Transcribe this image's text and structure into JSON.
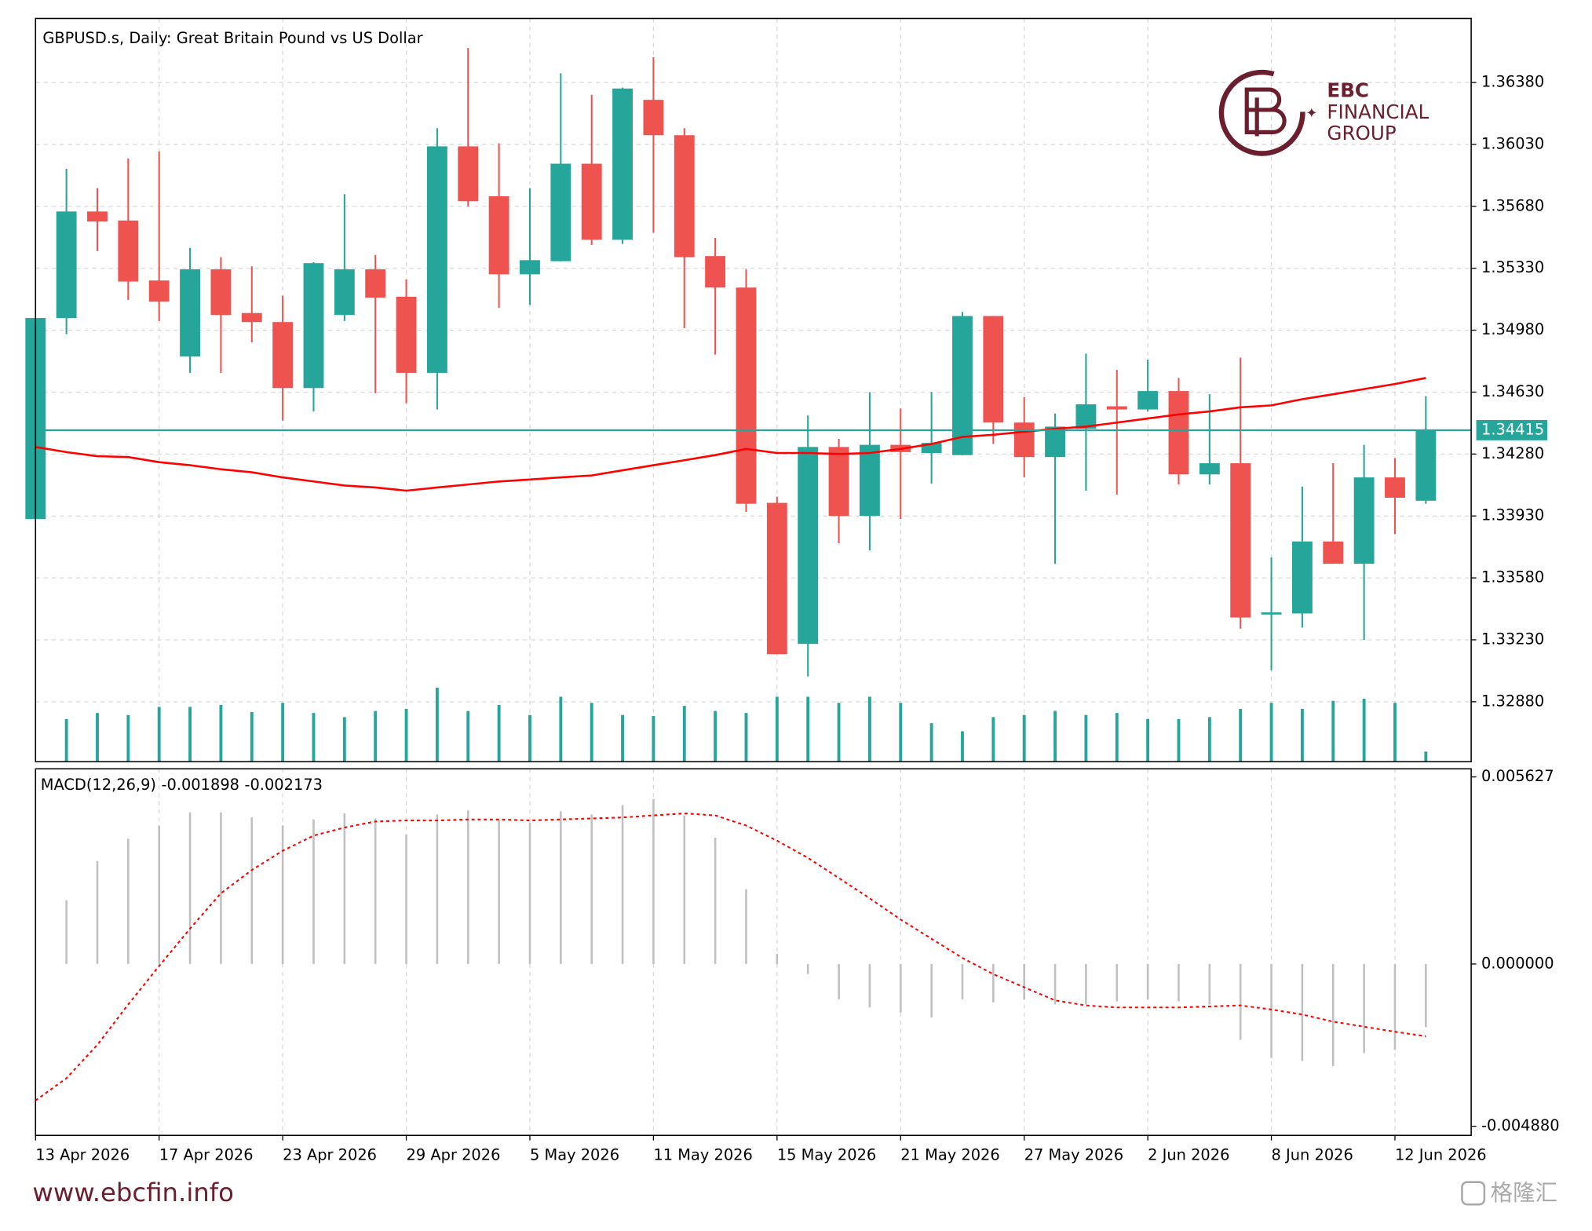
{
  "chart_data": {
    "type": "candlestick",
    "title": "GBPUSD.s, Daily:  Great Britain Pound vs US Dollar",
    "categories": [
      "13 Apr 2026",
      null,
      null,
      null,
      "17 Apr 2026",
      null,
      null,
      null,
      "23 Apr 2026",
      null,
      null,
      null,
      "29 Apr 2026",
      null,
      null,
      null,
      "5 May 2026",
      null,
      null,
      null,
      "11 May 2026",
      null,
      null,
      null,
      "15 May 2026",
      null,
      null,
      null,
      "21 May 2026",
      null,
      null,
      null,
      "27 May 2026",
      null,
      null,
      null,
      "2 Jun 2026",
      null,
      null,
      null,
      "8 Jun 2026",
      null,
      null,
      null,
      "12 Jun 2026",
      null
    ],
    "open": [
      1.33913,
      1.35049,
      1.35651,
      1.356,
      1.35261,
      1.34831,
      1.35324,
      1.35077,
      1.35026,
      1.34653,
      1.35066,
      1.35324,
      1.35169,
      1.34739,
      1.36019,
      1.35737,
      1.35296,
      1.3537,
      1.35921,
      1.35491,
      1.36282,
      1.36082,
      1.35399,
      1.35221,
      1.34004,
      1.33207,
      1.3432,
      1.3393,
      1.34332,
      1.34286,
      1.34274,
      1.3506,
      1.34458,
      1.34263,
      1.34423,
      1.3455,
      1.34532,
      1.34636,
      1.34165,
      1.34228,
      1.33373,
      1.33379,
      1.33786,
      1.3366,
      1.34148,
      1.34016
    ],
    "high": [
      1.35049,
      1.35892,
      1.35783,
      1.3595,
      1.3599,
      1.35445,
      1.35393,
      1.35341,
      1.35175,
      1.35364,
      1.35749,
      1.35405,
      1.35267,
      1.36122,
      1.36575,
      1.36036,
      1.35783,
      1.36432,
      1.36311,
      1.36351,
      1.36523,
      1.36122,
      1.35502,
      1.35324,
      1.34039,
      1.34498,
      1.34366,
      1.3463,
      1.34538,
      1.3463,
      1.35083,
      1.3506,
      1.34601,
      1.34509,
      1.34848,
      1.34756,
      1.34814,
      1.3471,
      1.34618,
      1.34825,
      1.33695,
      1.34096,
      1.34228,
      1.34332,
      1.34257,
      1.34607
    ],
    "low": [
      1.33913,
      1.34957,
      1.35427,
      1.35152,
      1.35032,
      1.34739,
      1.34739,
      1.34911,
      1.34469,
      1.34521,
      1.35032,
      1.34624,
      1.34567,
      1.34532,
      1.3568,
      1.35106,
      1.35123,
      1.3537,
      1.35462,
      1.35468,
      1.35531,
      1.34991,
      1.34842,
      1.33953,
      1.33149,
      1.33023,
      1.33775,
      1.33735,
      1.33913,
      1.34113,
      1.34274,
      1.34337,
      1.34148,
      1.3366,
      1.34073,
      1.3405,
      1.34521,
      1.34108,
      1.34108,
      1.33293,
      1.33058,
      1.33299,
      1.3366,
      1.3323,
      1.33827,
      1.33999
    ],
    "close": [
      1.35049,
      1.35651,
      1.35594,
      1.35255,
      1.35141,
      1.35324,
      1.35066,
      1.35026,
      1.34653,
      1.35359,
      1.35324,
      1.35164,
      1.34739,
      1.36019,
      1.35709,
      1.35296,
      1.35376,
      1.35921,
      1.35491,
      1.36346,
      1.36082,
      1.35393,
      1.35221,
      1.33999,
      1.33149,
      1.3432,
      1.3393,
      1.34332,
      1.34291,
      1.34343,
      1.3506,
      1.34458,
      1.34263,
      1.34435,
      1.34561,
      1.34532,
      1.34636,
      1.34165,
      1.34228,
      1.33356,
      1.33385,
      1.33786,
      1.3366,
      1.34148,
      1.34033,
      1.34415
    ],
    "up_color": "#26a69a",
    "down_color": "#ef5350",
    "moving_average": {
      "color": "#ff0000",
      "values": [
        1.3432,
        1.34291,
        1.34268,
        1.34263,
        1.34234,
        1.34217,
        1.34194,
        1.34177,
        1.34148,
        1.34125,
        1.34102,
        1.34091,
        1.34073,
        1.34091,
        1.34108,
        1.34125,
        1.34136,
        1.34148,
        1.34159,
        1.34188,
        1.34217,
        1.34245,
        1.34274,
        1.34309,
        1.34286,
        1.34286,
        1.3428,
        1.34286,
        1.34309,
        1.34337,
        1.34377,
        1.34389,
        1.34406,
        1.34423,
        1.34435,
        1.34458,
        1.34481,
        1.34504,
        1.34521,
        1.34544,
        1.34555,
        1.3459,
        1.34618,
        1.34647,
        1.34676,
        1.3471
      ]
    },
    "volume": {
      "color": "#26a69a",
      "values": [
        null,
        42,
        48,
        46,
        54,
        54,
        56,
        49,
        58,
        48,
        44,
        50,
        52,
        73,
        50,
        56,
        46,
        64,
        58,
        46,
        45,
        55,
        50,
        48,
        64,
        64,
        58,
        64,
        58,
        38,
        30,
        44,
        46,
        50,
        46,
        48,
        42,
        42,
        44,
        52,
        58,
        52,
        60,
        62,
        58,
        10
      ]
    },
    "ylim": [
      1.32541,
      1.36742
    ],
    "yticks": [
      {
        "value": 1.3638,
        "label": "1.36380"
      },
      {
        "value": 1.3603,
        "label": "1.36030"
      },
      {
        "value": 1.3568,
        "label": "1.35680"
      },
      {
        "value": 1.3533,
        "label": "1.35330"
      },
      {
        "value": 1.3498,
        "label": "1.34980"
      },
      {
        "value": 1.3463,
        "label": "1.34630"
      },
      {
        "value": 1.3428,
        "label": "1.34280"
      },
      {
        "value": 1.3393,
        "label": "1.33930"
      },
      {
        "value": 1.3358,
        "label": "1.33580"
      },
      {
        "value": 1.3323,
        "label": "1.33230"
      },
      {
        "value": 1.3288,
        "label": "1.32880"
      }
    ],
    "grid": true,
    "macd": {
      "title": "MACD(12,26,9)",
      "histogram_color": "#c0c0c0",
      "signal_color": "#ff0000",
      "histogram": [
        null,
        0.001915,
        0.003101,
        0.00377,
        0.004165,
        0.00456,
        0.00456,
        0.004408,
        0.004165,
        0.004347,
        0.00453,
        0.004378,
        0.003891,
        0.004499,
        0.004621,
        0.004347,
        0.004256,
        0.00459,
        0.004499,
        0.004773,
        0.004955,
        0.004469,
        0.0038,
        0.00225,
        0.000304,
        -0.000304,
        -0.001064,
        -0.001307,
        -0.001459,
        -0.001611,
        -0.001064,
        -0.001155,
        -0.001064,
        -0.001216,
        -0.001216,
        -0.001125,
        -0.001064,
        -0.001125,
        -0.001216,
        -0.00228,
        -0.002827,
        -0.002918,
        -0.00307,
        -0.002675,
        -0.002584,
        -0.001898
      ],
      "signal": [
        -0.004104,
        -0.003435,
        -0.002432,
        -0.001216,
        -6.1e-05,
        0.001064,
        0.002128,
        0.002827,
        0.003405,
        0.003861,
        0.004104,
        0.004286,
        0.004317,
        0.004317,
        0.004347,
        0.004347,
        0.004317,
        0.004347,
        0.004378,
        0.004408,
        0.004469,
        0.00453,
        0.004469,
        0.004165,
        0.003709,
        0.003192,
        0.002584,
        0.001976,
        0.001338,
        0.00076,
        0.000182,
        -0.000304,
        -0.000699,
        -0.001094,
        -0.001246,
        -0.001307,
        -0.001307,
        -0.001307,
        -0.001277,
        -0.001246,
        -0.001368,
        -0.00152,
        -0.001733,
        -0.001885,
        -0.002037,
        -0.002173
      ],
      "ylim": [
        -0.005154,
        0.00587
      ],
      "yticks": [
        0.005627,
        {
          "value": 0,
          "label": "0.000000"
        },
        {
          "value": -0.00488,
          "label": "-0.004880"
        }
      ]
    }
  },
  "branding": {
    "logo_line1": "EBC",
    "logo_line2": "FINANCIAL",
    "logo_line3": "GROUP",
    "website": "www.ebcfin.info",
    "watermark": "格隆汇"
  }
}
